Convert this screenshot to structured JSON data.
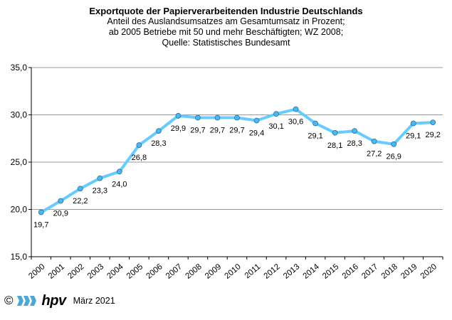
{
  "chart_data": {
    "type": "line",
    "title": "Exportquote der Papierverarbeitenden Industrie Deutschlands",
    "subtitle_lines": [
      "Anteil des Auslandsumsatzes am Gesamtumsatz in Prozent;",
      "ab 2005 Betriebe mit 50 und mehr Beschäftigten; WZ 2008;",
      "Quelle: Statistisches Bundesamt"
    ],
    "categories": [
      "2000",
      "2001",
      "2002",
      "2003",
      "2004",
      "2005",
      "2006",
      "2007",
      "2008",
      "2009",
      "2010",
      "2011",
      "2012",
      "2013",
      "2014",
      "2015",
      "2016",
      "2017",
      "2018",
      "2019",
      "2020"
    ],
    "series": [
      {
        "values": [
          19.7,
          20.9,
          22.2,
          23.3,
          24.0,
          26.8,
          28.3,
          29.9,
          29.7,
          29.7,
          29.7,
          29.4,
          30.1,
          30.6,
          29.1,
          28.1,
          28.3,
          27.2,
          26.9,
          29.1,
          29.2
        ],
        "labels": [
          "19,7",
          "20,9",
          "22,2",
          "23,3",
          "24,0",
          "26,8",
          "28,3",
          "29,9",
          "29,7",
          "29,7",
          "29,7",
          "29,4",
          "30,1",
          "30,6",
          "29,1",
          "28,1",
          "28,3",
          "27,2",
          "26,9",
          "29,1",
          "29,2"
        ]
      }
    ],
    "ylim": [
      15,
      35
    ],
    "yticks": [
      15,
      20,
      25,
      30,
      35
    ],
    "ytick_labels": [
      "15,0",
      "20,0",
      "25,0",
      "30,0",
      "35,0"
    ],
    "grid": "horizontal",
    "line_color": "#66ccff",
    "marker_color": "#4db8f0"
  },
  "footer": {
    "copyright": "©",
    "logo_text": "hpv",
    "date": "März 2021"
  }
}
